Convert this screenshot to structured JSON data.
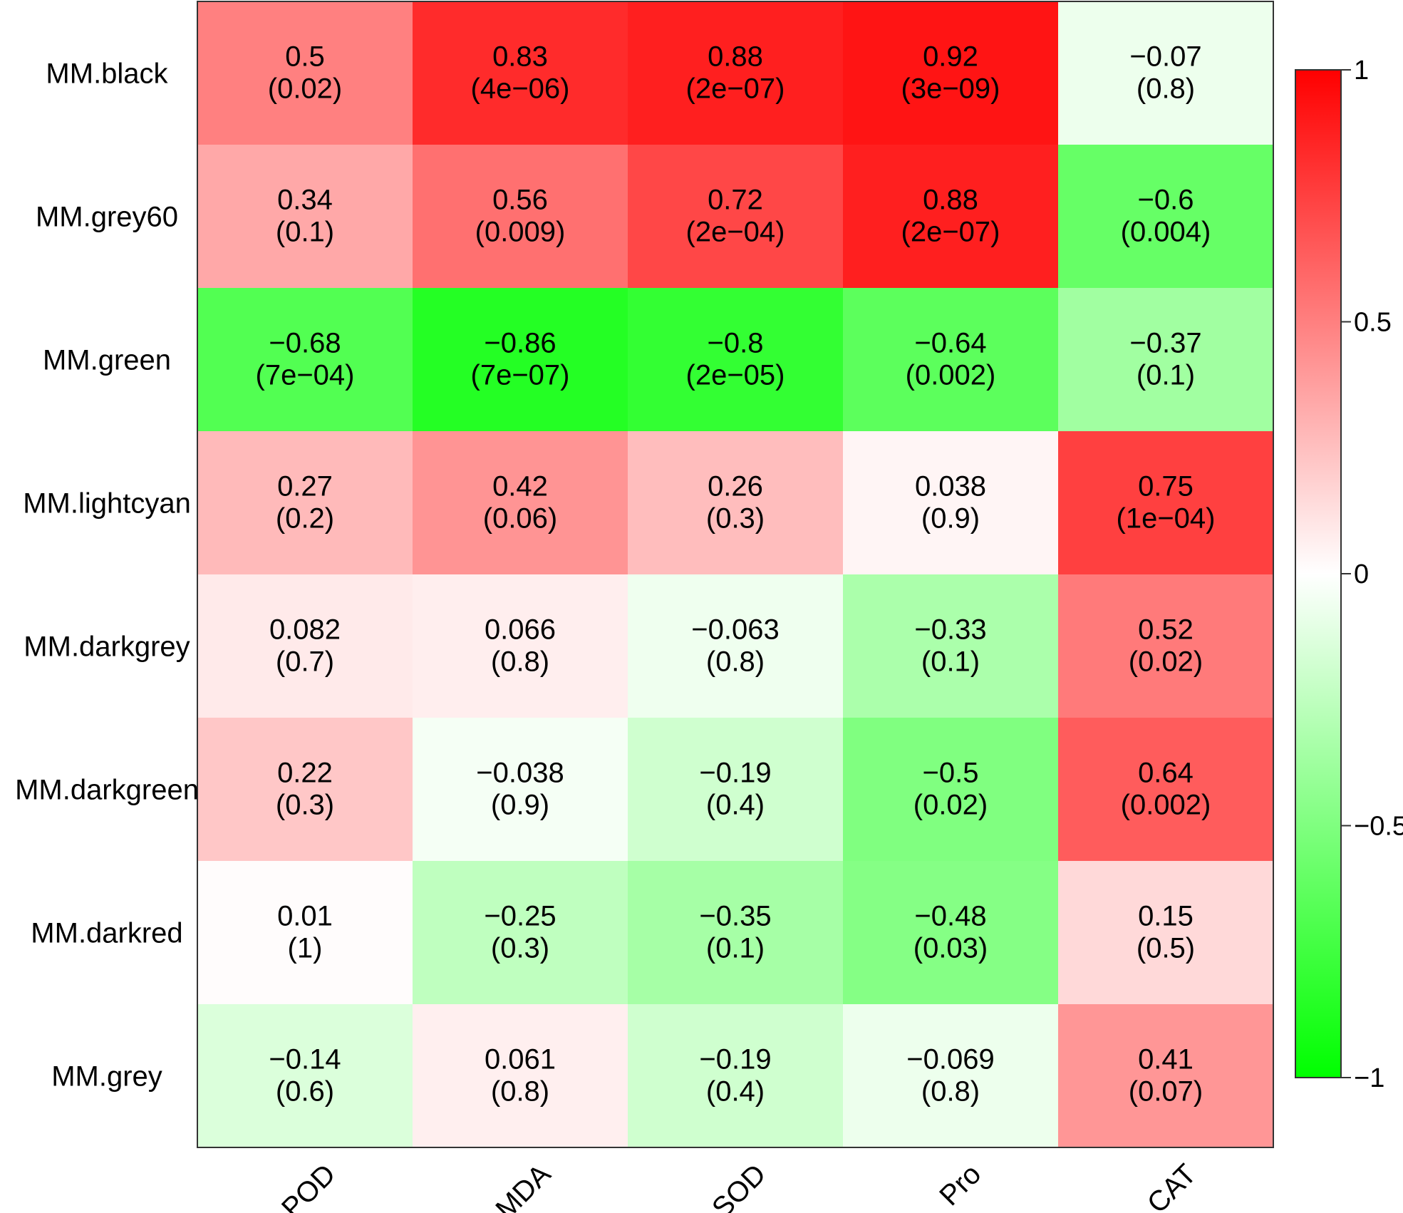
{
  "chart_data": {
    "type": "heatmap",
    "title": "",
    "xlabel": "",
    "ylabel": "",
    "rows": [
      "MM.black",
      "MM.grey60",
      "MM.green",
      "MM.lightcyan",
      "MM.darkgrey",
      "MM.darkgreen",
      "MM.darkred",
      "MM.grey"
    ],
    "columns": [
      "POD",
      "MDA",
      "SOD",
      "Pro",
      "CAT"
    ],
    "values": [
      [
        0.5,
        0.83,
        0.88,
        0.92,
        -0.07
      ],
      [
        0.34,
        0.56,
        0.72,
        0.88,
        -0.6
      ],
      [
        -0.68,
        -0.86,
        -0.8,
        -0.64,
        -0.37
      ],
      [
        0.27,
        0.42,
        0.26,
        0.038,
        0.75
      ],
      [
        0.082,
        0.066,
        -0.063,
        -0.33,
        0.52
      ],
      [
        0.22,
        -0.038,
        -0.19,
        -0.5,
        0.64
      ],
      [
        0.01,
        -0.25,
        -0.35,
        -0.48,
        0.15
      ],
      [
        -0.14,
        0.061,
        -0.19,
        -0.069,
        0.41
      ]
    ],
    "value_labels": [
      [
        "0.5",
        "0.83",
        "0.88",
        "0.92",
        "−0.07"
      ],
      [
        "0.34",
        "0.56",
        "0.72",
        "0.88",
        "−0.6"
      ],
      [
        "−0.68",
        "−0.86",
        "−0.8",
        "−0.64",
        "−0.37"
      ],
      [
        "0.27",
        "0.42",
        "0.26",
        "0.038",
        "0.75"
      ],
      [
        "0.082",
        "0.066",
        "−0.063",
        "−0.33",
        "0.52"
      ],
      [
        "0.22",
        "−0.038",
        "−0.19",
        "−0.5",
        "0.64"
      ],
      [
        "0.01",
        "−0.25",
        "−0.35",
        "−0.48",
        "0.15"
      ],
      [
        "−0.14",
        "0.061",
        "−0.19",
        "−0.069",
        "0.41"
      ]
    ],
    "p_labels": [
      [
        "(0.02)",
        "(4e−06)",
        "(2e−07)",
        "(3e−09)",
        "(0.8)"
      ],
      [
        "(0.1)",
        "(0.009)",
        "(2e−04)",
        "(2e−07)",
        "(0.004)"
      ],
      [
        "(7e−04)",
        "(7e−07)",
        "(2e−05)",
        "(0.002)",
        "(0.1)"
      ],
      [
        "(0.2)",
        "(0.06)",
        "(0.3)",
        "(0.9)",
        "(1e−04)"
      ],
      [
        "(0.7)",
        "(0.8)",
        "(0.8)",
        "(0.1)",
        "(0.02)"
      ],
      [
        "(0.3)",
        "(0.9)",
        "(0.4)",
        "(0.02)",
        "(0.002)"
      ],
      [
        "(1)",
        "(0.3)",
        "(0.1)",
        "(0.03)",
        "(0.5)"
      ],
      [
        "(0.6)",
        "(0.8)",
        "(0.4)",
        "(0.8)",
        "(0.07)"
      ]
    ],
    "color_scale": {
      "min": -1,
      "max": 1,
      "low_color": "#00ff00",
      "mid_color": "#ffffff",
      "high_color": "#ff0000"
    },
    "legend": {
      "position": "right",
      "ticks": [
        1,
        0.5,
        0,
        -0.5,
        -1
      ],
      "tick_labels": [
        "1",
        "0.5",
        "0",
        "−0.5",
        "−1"
      ]
    },
    "grid": false
  }
}
